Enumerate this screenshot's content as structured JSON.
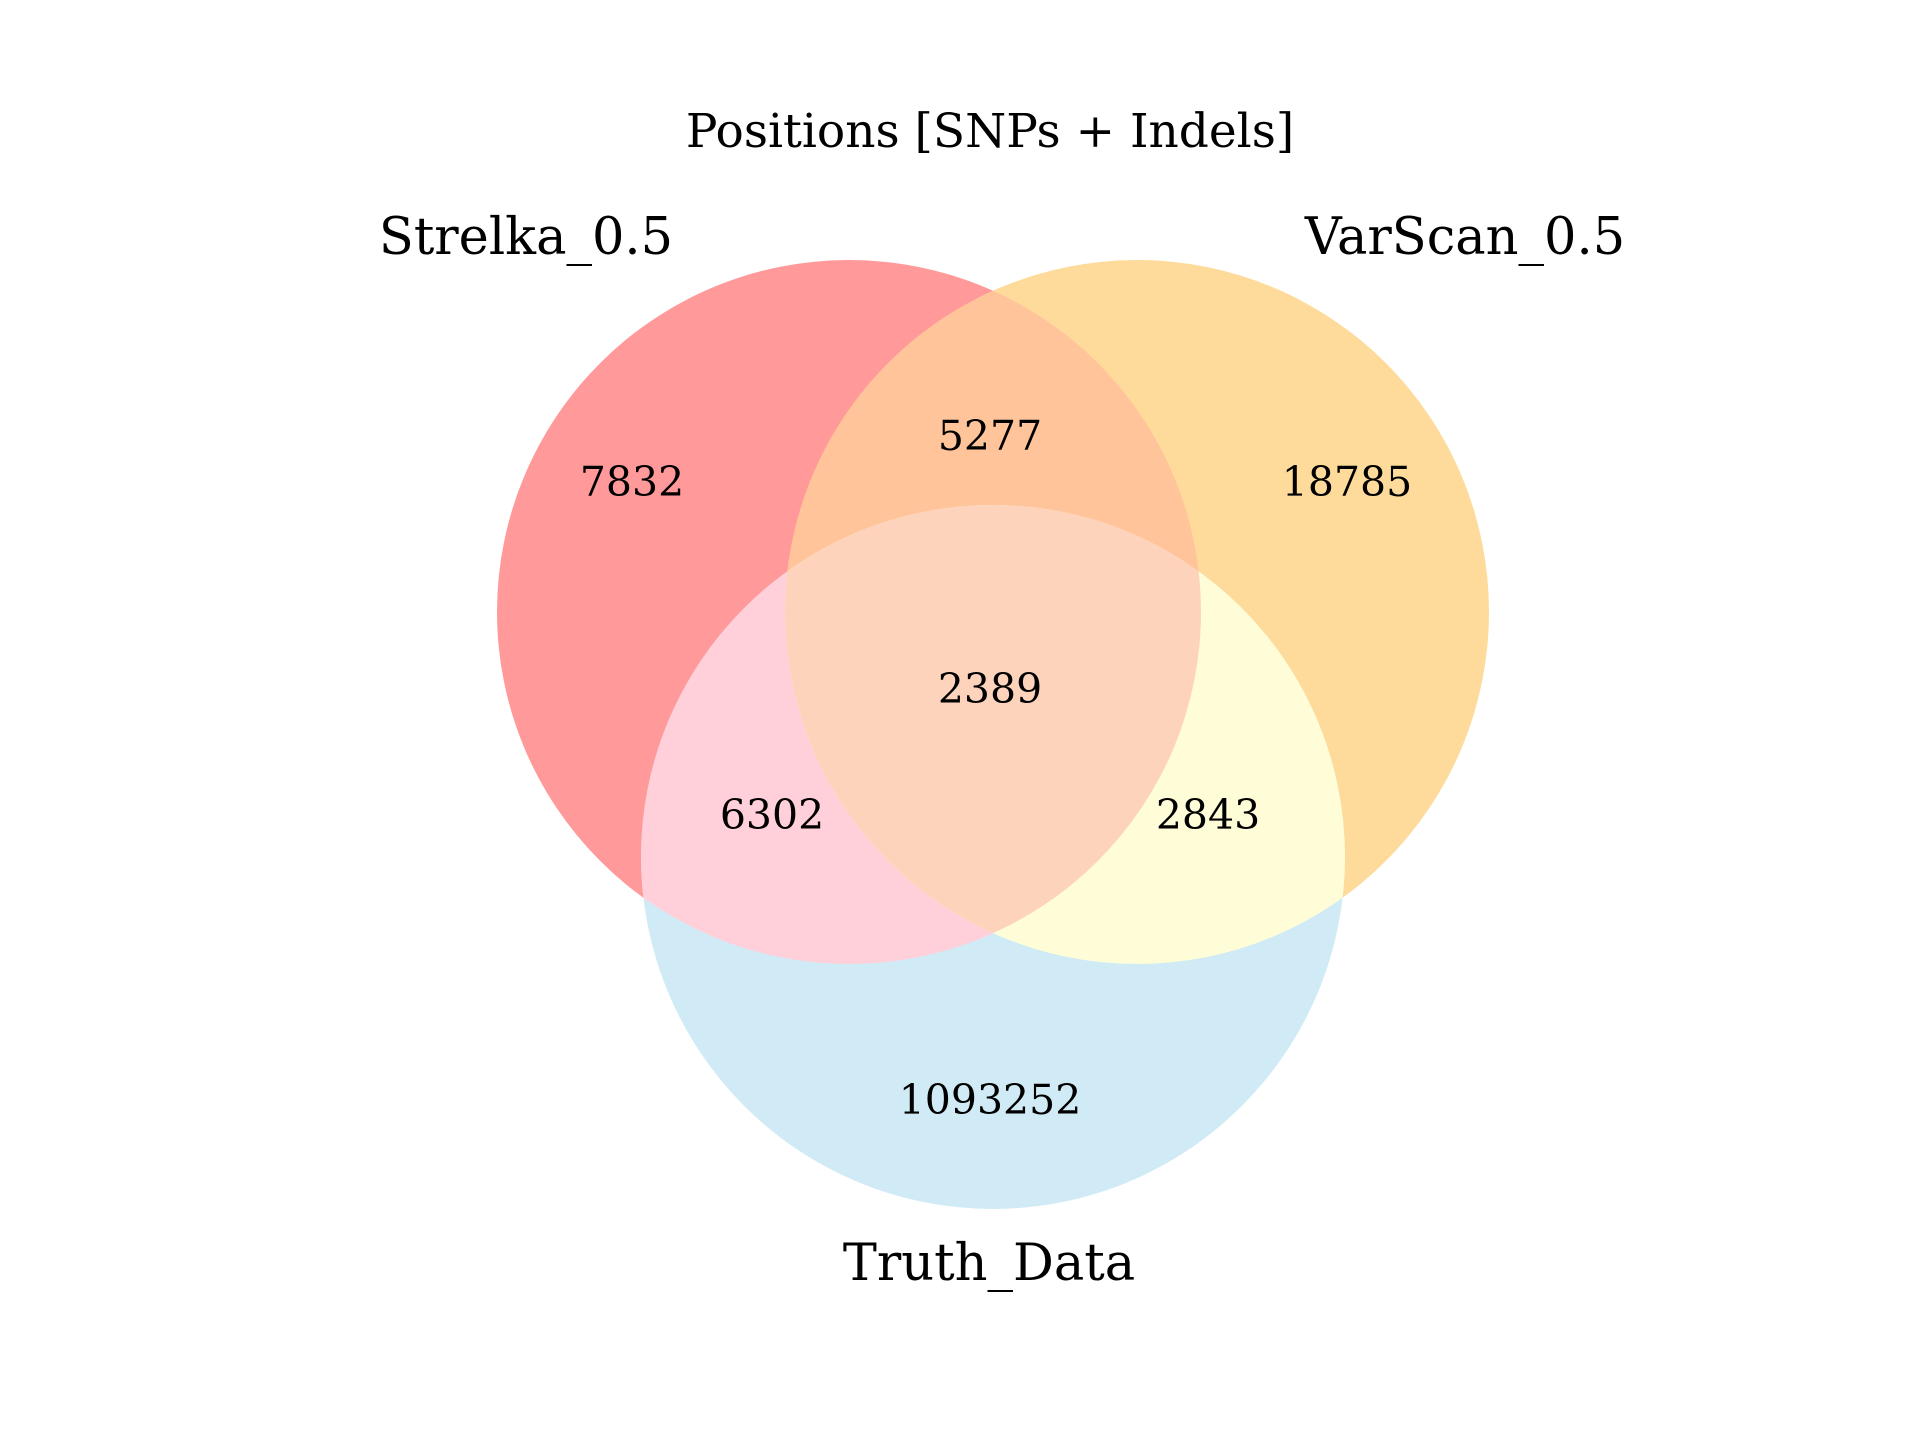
{
  "title": "Positions [SNPs + Indels]",
  "sets": [
    {
      "name": "Strelka_0.5",
      "color": "#ff999a"
    },
    {
      "name": "VarScan_0.5",
      "color": "#fedb9a"
    },
    {
      "name": "Truth_Data",
      "color": "#d0ebf6"
    }
  ],
  "regions": {
    "strelka_only": "7832",
    "varscan_only": "18785",
    "strelka_varscan": "5277",
    "all_three": "2389",
    "strelka_truth": "6302",
    "varscan_truth": "2843",
    "truth_only": "1093252"
  },
  "region_colors": {
    "strelka_varscan": "#ffc49a",
    "strelka_truth": "#ffd0da",
    "varscan_truth": "#fefdd8",
    "all_three": "#fed3bb"
  }
}
